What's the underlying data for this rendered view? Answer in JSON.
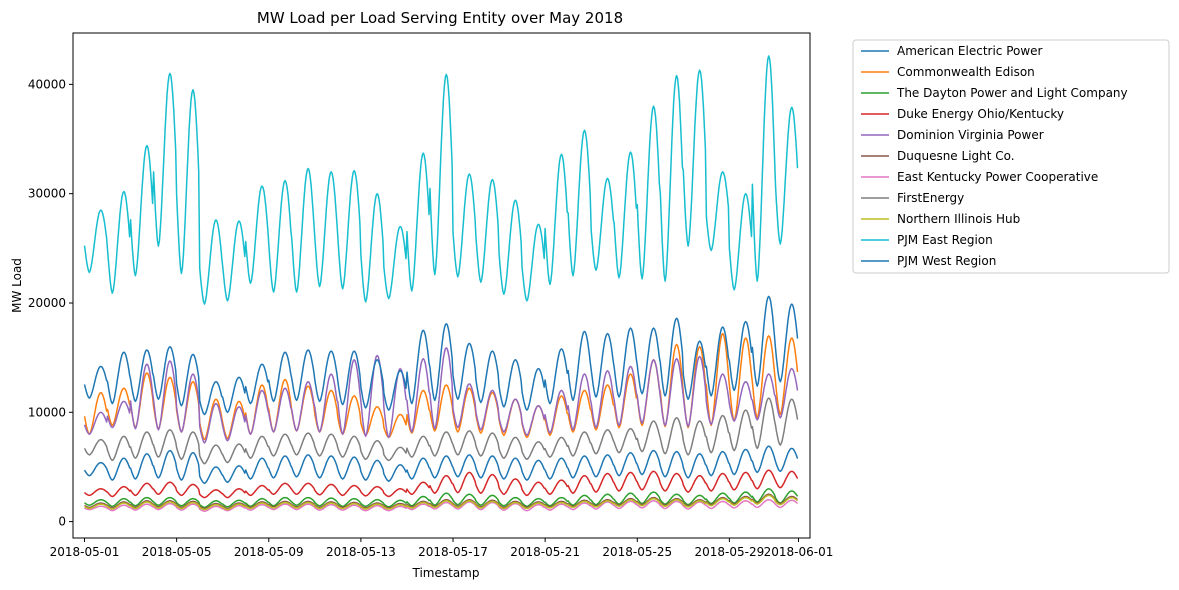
{
  "chart_data": {
    "type": "line",
    "title": "MW Load per Load Serving Entity over May 2018",
    "xlabel": "Timestamp",
    "ylabel": "MW Load",
    "x_start": "2018-05-01",
    "x_end": "2018-05-31",
    "xlim": [
      "2018-04-30T12:00",
      "2018-06-01T12:00"
    ],
    "ylim": [
      -1500,
      44700
    ],
    "x_tick_labels": [
      "2018-05-01",
      "2018-05-05",
      "2018-05-09",
      "2018-05-13",
      "2018-05-17",
      "2018-05-21",
      "2018-05-25",
      "2018-05-29",
      "2018-06-01"
    ],
    "x_tick_dates": [
      "2018-05-01",
      "2018-05-05",
      "2018-05-09",
      "2018-05-13",
      "2018-05-17",
      "2018-05-21",
      "2018-05-25",
      "2018-05-29",
      "2018-06-01"
    ],
    "y_ticks": [
      0,
      10000,
      20000,
      30000,
      40000
    ],
    "y_tick_labels": [
      "0",
      "10000",
      "20000",
      "30000",
      "40000"
    ],
    "grid": false,
    "legend_position": "outside-right",
    "series": [
      {
        "name": "American Electric Power",
        "color": "#1f77b4",
        "min": [
          4200,
          3800,
          3900,
          4000,
          3800,
          3500,
          3600,
          3900,
          4000,
          4100,
          4000,
          3900,
          3800,
          3700,
          3900,
          4000,
          4100,
          4000,
          3900,
          3800,
          3900,
          4000,
          4100,
          4200,
          4300,
          4100,
          4000,
          4200,
          4300,
          4500,
          4600
        ],
        "max": [
          5400,
          5800,
          6200,
          6500,
          6300,
          5000,
          5100,
          5800,
          6000,
          6100,
          6000,
          5900,
          5600,
          5200,
          5800,
          6000,
          6100,
          6000,
          5800,
          5600,
          5800,
          6000,
          6100,
          6300,
          6500,
          6400,
          6200,
          6400,
          6600,
          6900,
          6700
        ]
      },
      {
        "name": "Commonwealth Edison",
        "color": "#ff7f0e",
        "min": [
          8000,
          8800,
          8600,
          8500,
          8200,
          7500,
          7600,
          8000,
          8200,
          8300,
          8200,
          8000,
          7900,
          7700,
          8100,
          8300,
          8200,
          8100,
          7900,
          7700,
          7900,
          8200,
          8400,
          8600,
          8800,
          8700,
          8600,
          8800,
          9200,
          9500,
          9800
        ],
        "max": [
          11800,
          12200,
          13600,
          13200,
          12800,
          11200,
          11000,
          12500,
          13000,
          12400,
          12000,
          11500,
          10500,
          9800,
          12000,
          12500,
          12200,
          11800,
          11200,
          10600,
          11500,
          12000,
          12500,
          13500,
          14800,
          16200,
          16000,
          17200,
          16800,
          17000,
          16800
        ]
      },
      {
        "name": "The Dayton Power and Light Company",
        "color": "#2ca02c",
        "min": [
          1500,
          1400,
          1450,
          1500,
          1450,
          1300,
          1350,
          1400,
          1450,
          1500,
          1450,
          1400,
          1400,
          1350,
          1450,
          1500,
          1550,
          1500,
          1450,
          1400,
          1450,
          1500,
          1550,
          1600,
          1650,
          1600,
          1550,
          1650,
          1700,
          1800,
          1700
        ],
        "max": [
          2000,
          2100,
          2200,
          2200,
          2100,
          1900,
          1950,
          2100,
          2200,
          2200,
          2150,
          2100,
          2000,
          1950,
          2300,
          2600,
          2500,
          2400,
          2200,
          2100,
          2200,
          2400,
          2500,
          2600,
          2700,
          2500,
          2400,
          2600,
          2700,
          3000,
          2800
        ]
      },
      {
        "name": "Duke Energy Ohio/Kentucky",
        "color": "#d62728",
        "min": [
          2400,
          2300,
          2400,
          2500,
          2400,
          2200,
          2200,
          2400,
          2500,
          2500,
          2450,
          2400,
          2350,
          2300,
          2500,
          2600,
          2650,
          2600,
          2500,
          2400,
          2500,
          2600,
          2700,
          2800,
          2900,
          2800,
          2700,
          2800,
          2900,
          3000,
          3100
        ],
        "max": [
          3000,
          3200,
          3500,
          3600,
          3400,
          2900,
          3000,
          3300,
          3500,
          3500,
          3400,
          3300,
          3200,
          3000,
          3600,
          4200,
          4500,
          4300,
          3900,
          3600,
          3800,
          4200,
          4400,
          4500,
          4600,
          4400,
          4200,
          4400,
          4500,
          4700,
          4600
        ]
      },
      {
        "name": "Dominion Virginia Power",
        "color": "#9467bd",
        "min": [
          8000,
          8600,
          8500,
          8400,
          8200,
          7200,
          7400,
          8000,
          8200,
          8300,
          8200,
          8000,
          7800,
          7700,
          8200,
          8500,
          8600,
          8400,
          8200,
          7900,
          8100,
          8400,
          8600,
          8800,
          9000,
          8800,
          8700,
          8900,
          9200,
          9300,
          9500
        ],
        "max": [
          10000,
          11000,
          14400,
          14700,
          13500,
          10800,
          10500,
          12000,
          12200,
          12800,
          13500,
          14800,
          15200,
          14000,
          14900,
          15900,
          12600,
          12000,
          11200,
          10600,
          12000,
          13500,
          13800,
          14200,
          14800,
          14900,
          15100,
          13500,
          12800,
          13500,
          14000
        ]
      },
      {
        "name": "Duquesne Light Co.",
        "color": "#8c564b",
        "min": [
          1300,
          1250,
          1300,
          1350,
          1300,
          1200,
          1200,
          1300,
          1350,
          1350,
          1300,
          1300,
          1250,
          1250,
          1350,
          1400,
          1400,
          1350,
          1300,
          1300,
          1350,
          1400,
          1450,
          1500,
          1550,
          1500,
          1450,
          1550,
          1600,
          1700,
          1650
        ],
        "max": [
          1700,
          1800,
          1900,
          1900,
          1850,
          1650,
          1700,
          1800,
          1850,
          1850,
          1800,
          1750,
          1700,
          1650,
          1850,
          2000,
          2000,
          1950,
          1850,
          1800,
          1850,
          1950,
          2000,
          2100,
          2200,
          2100,
          2000,
          2200,
          2300,
          2500,
          2300
        ]
      },
      {
        "name": "East Kentucky Power Cooperative",
        "color": "#e377c2",
        "min": [
          1100,
          1000,
          1050,
          1100,
          1050,
          950,
          1000,
          1050,
          1100,
          1100,
          1050,
          1050,
          1000,
          1000,
          1100,
          1150,
          1150,
          1100,
          1050,
          1000,
          1050,
          1100,
          1150,
          1200,
          1250,
          1200,
          1150,
          1200,
          1250,
          1300,
          1300
        ],
        "max": [
          1400,
          1500,
          1600,
          1650,
          1600,
          1400,
          1450,
          1550,
          1600,
          1600,
          1550,
          1500,
          1450,
          1400,
          1600,
          1750,
          1800,
          1750,
          1650,
          1550,
          1600,
          1700,
          1800,
          1850,
          1900,
          1850,
          1800,
          1850,
          1900,
          2000,
          1950
        ]
      },
      {
        "name": "FirstEnergy",
        "color": "#7f7f7f",
        "min": [
          6100,
          5600,
          5800,
          5900,
          5700,
          5300,
          5400,
          5800,
          6000,
          6100,
          6000,
          5900,
          5700,
          5600,
          5900,
          6000,
          6100,
          6000,
          5800,
          5700,
          5900,
          6000,
          6200,
          6300,
          6400,
          6200,
          6100,
          6300,
          6500,
          6700,
          7000
        ],
        "max": [
          7500,
          7800,
          8200,
          8400,
          8200,
          7000,
          7100,
          7800,
          8000,
          8100,
          8000,
          7800,
          7400,
          6800,
          7800,
          8200,
          8300,
          8100,
          7700,
          7300,
          7700,
          8200,
          8400,
          8500,
          9200,
          9500,
          9200,
          9700,
          10200,
          11300,
          11200
        ]
      },
      {
        "name": "Northern Illinois Hub",
        "color": "#bcbd22",
        "min": [
          1200,
          1150,
          1200,
          1250,
          1200,
          1100,
          1100,
          1200,
          1250,
          1250,
          1200,
          1200,
          1150,
          1150,
          1250,
          1300,
          1300,
          1250,
          1200,
          1200,
          1250,
          1300,
          1350,
          1400,
          1450,
          1400,
          1350,
          1450,
          1500,
          1600,
          1550
        ],
        "max": [
          1600,
          1700,
          1800,
          1800,
          1750,
          1550,
          1600,
          1700,
          1750,
          1750,
          1700,
          1650,
          1600,
          1550,
          1750,
          1900,
          1900,
          1850,
          1750,
          1700,
          1750,
          1850,
          1900,
          2000,
          2100,
          2000,
          1900,
          2100,
          2200,
          2400,
          2200
        ]
      },
      {
        "name": "PJM East Region",
        "color": "#17becf",
        "min": [
          22800,
          20900,
          22500,
          25200,
          22700,
          19900,
          20200,
          21800,
          21000,
          21000,
          21500,
          21300,
          20100,
          20400,
          21100,
          22600,
          22400,
          21900,
          20800,
          20200,
          21700,
          22500,
          23000,
          22300,
          22200,
          22000,
          25200,
          24800,
          21200,
          22000,
          25400
        ],
        "max": [
          28500,
          30200,
          34400,
          41000,
          39500,
          27600,
          27500,
          30700,
          31200,
          32300,
          32000,
          32100,
          30000,
          27000,
          33700,
          40900,
          31800,
          31300,
          29400,
          27200,
          33600,
          35800,
          31400,
          33800,
          38000,
          40800,
          41300,
          32000,
          30000,
          42600,
          37900
        ]
      },
      {
        "name": "PJM West Region",
        "color": "#1f77b4",
        "min": [
          11300,
          10800,
          11000,
          11200,
          10600,
          9800,
          10000,
          10800,
          11000,
          11100,
          11000,
          10700,
          10400,
          10200,
          10800,
          11100,
          11200,
          10900,
          10500,
          10200,
          10800,
          11100,
          11400,
          11400,
          11700,
          11500,
          11200,
          11500,
          12000,
          12400,
          12800
        ],
        "max": [
          14200,
          15500,
          15700,
          16000,
          15300,
          12800,
          13200,
          14400,
          15500,
          15700,
          15600,
          15600,
          14800,
          13800,
          17500,
          18100,
          16300,
          15600,
          14800,
          14000,
          15800,
          17400,
          17200,
          17700,
          17700,
          18600,
          16500,
          17800,
          18300,
          20600,
          19900
        ]
      }
    ]
  }
}
